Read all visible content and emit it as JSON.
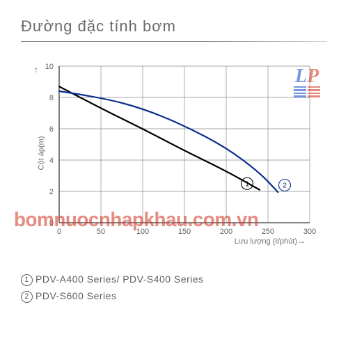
{
  "title": "Đường đặc tính bơm",
  "chart": {
    "type": "line",
    "xlim": [
      0,
      300
    ],
    "ylim": [
      0,
      10
    ],
    "xticks": [
      0,
      50,
      100,
      150,
      200,
      250,
      300
    ],
    "yticks": [
      0,
      2,
      4,
      6,
      8,
      10
    ],
    "xlabel": "Lưu lượng  (ℓ/phút)",
    "ylabel": "Cột áp(m)",
    "grid_color": "#8a8a8a",
    "axis_color": "#3a3a3a",
    "background_color": "#ffffff",
    "label_fontsize": 11,
    "tick_fontsize": 11,
    "series": [
      {
        "id": 1,
        "name": "PDV-A400 Series/ PDV-S400 Series",
        "color": "#000000",
        "width": 2.2,
        "points": [
          [
            0,
            8.7
          ],
          [
            50,
            7.3
          ],
          [
            100,
            6.0
          ],
          [
            150,
            4.6
          ],
          [
            200,
            3.3
          ],
          [
            240,
            2.1
          ]
        ],
        "marker_at": [
          225,
          2.5
        ]
      },
      {
        "id": 2,
        "name": "PDV-S600 Series",
        "color": "#0b2f8f",
        "width": 2.2,
        "points": [
          [
            0,
            8.4
          ],
          [
            50,
            8.0
          ],
          [
            100,
            7.3
          ],
          [
            150,
            6.2
          ],
          [
            200,
            4.8
          ],
          [
            240,
            3.2
          ],
          [
            262,
            1.95
          ]
        ],
        "marker_at": [
          270,
          2.4
        ]
      }
    ]
  },
  "legend": [
    {
      "num": "1",
      "text": "PDV-A400 Series/ PDV-S400 Series"
    },
    {
      "num": "2",
      "text": "PDV-S600 Series"
    }
  ],
  "watermark": "bomnuocnhapkhau.com.vn",
  "logo": {
    "text_l": "L",
    "text_p": "P"
  }
}
